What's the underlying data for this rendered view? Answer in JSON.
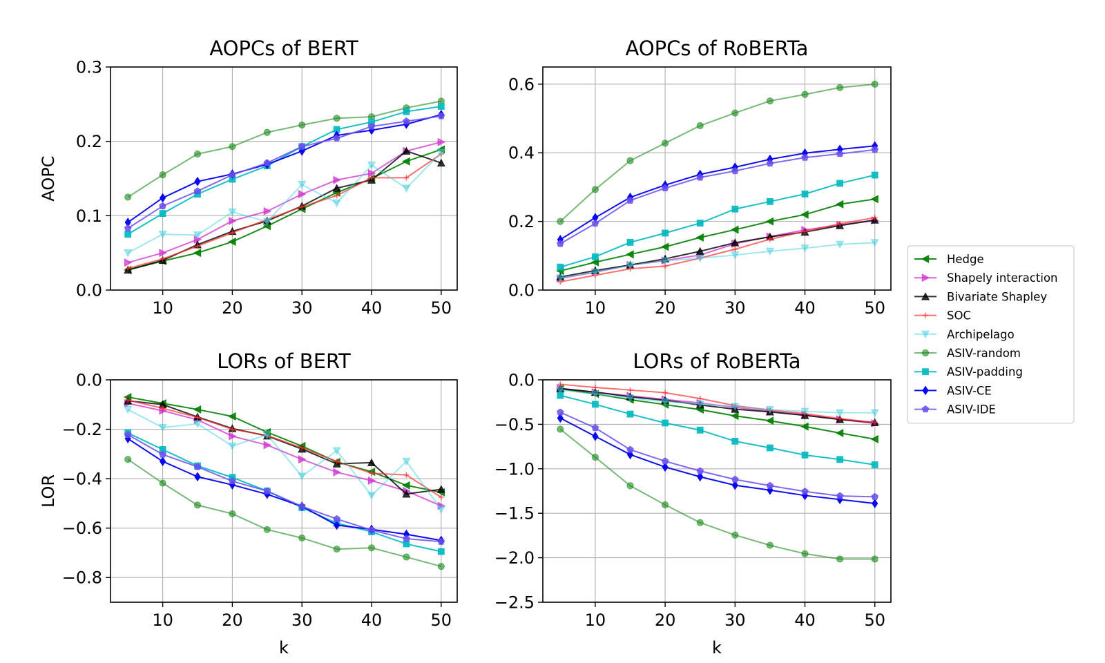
{
  "series_style": [
    {
      "name": "Hedge",
      "color": "#008000",
      "alpha": 0.9,
      "marker": "triangle-left"
    },
    {
      "name": "Shapely interaction",
      "color": "#d030d0",
      "alpha": 0.75,
      "marker": "triangle-right"
    },
    {
      "name": "Bivariate Shapley",
      "color": "#000000",
      "alpha": 0.8,
      "marker": "triangle-up"
    },
    {
      "name": "SOC",
      "color": "#ff3030",
      "alpha": 0.7,
      "marker": "plus"
    },
    {
      "name": "Archipelago",
      "color": "#40d0e0",
      "alpha": 0.5,
      "marker": "triangle-down"
    },
    {
      "name": "ASIV-random",
      "color": "#1a8a1a",
      "alpha": 0.6,
      "marker": "circle"
    },
    {
      "name": "ASIV-padding",
      "color": "#00b8c0",
      "alpha": 0.9,
      "marker": "square"
    },
    {
      "name": "ASIV-CE",
      "color": "#0000ee",
      "alpha": 0.95,
      "marker": "diamond"
    },
    {
      "name": "ASIV-IDE",
      "color": "#6a4ff0",
      "alpha": 0.85,
      "marker": "pentagon"
    }
  ],
  "chart_data": [
    {
      "type": "line",
      "title": "AOPCs of BERT",
      "xlabel": "",
      "ylabel": "AOPC",
      "xlim": [
        2.5,
        52.3
      ],
      "ylim": [
        0.0,
        0.3
      ],
      "xticks": [
        10,
        20,
        30,
        40,
        50
      ],
      "xtick_labels": [
        "10",
        "20",
        "30",
        "40",
        "50"
      ],
      "yticks": [
        0.0,
        0.1,
        0.2,
        0.3
      ],
      "ytick_labels": [
        "0.0",
        "0.1",
        "0.2",
        "0.3"
      ],
      "grid": true,
      "x": [
        5,
        10,
        15,
        20,
        25,
        30,
        35,
        40,
        45,
        50
      ],
      "series": [
        {
          "name": "Hedge",
          "values": [
            0.027,
            0.039,
            0.05,
            0.065,
            0.086,
            0.109,
            0.131,
            0.15,
            0.173,
            0.189
          ]
        },
        {
          "name": "Shapely interaction",
          "values": [
            0.037,
            0.05,
            0.068,
            0.093,
            0.106,
            0.129,
            0.148,
            0.157,
            0.187,
            0.199
          ]
        },
        {
          "name": "Bivariate Shapley",
          "values": [
            0.027,
            0.04,
            0.061,
            0.079,
            0.093,
            0.113,
            0.137,
            0.148,
            0.187,
            0.171
          ]
        },
        {
          "name": "SOC",
          "values": [
            0.029,
            0.042,
            0.059,
            0.077,
            0.095,
            0.112,
            0.127,
            0.151,
            0.151,
            0.183
          ]
        },
        {
          "name": "Archipelago",
          "values": [
            0.05,
            0.075,
            0.074,
            0.105,
            0.092,
            0.142,
            0.117,
            0.168,
            0.137,
            0.185
          ]
        },
        {
          "name": "ASIV-random",
          "values": [
            0.125,
            0.155,
            0.183,
            0.193,
            0.212,
            0.222,
            0.231,
            0.233,
            0.245,
            0.254
          ]
        },
        {
          "name": "ASIV-padding",
          "values": [
            0.075,
            0.103,
            0.129,
            0.149,
            0.167,
            0.193,
            0.216,
            0.226,
            0.24,
            0.247
          ]
        },
        {
          "name": "ASIV-CE",
          "values": [
            0.091,
            0.124,
            0.146,
            0.156,
            0.169,
            0.187,
            0.208,
            0.215,
            0.223,
            0.236
          ]
        },
        {
          "name": "ASIV-IDE",
          "values": [
            0.083,
            0.113,
            0.133,
            0.155,
            0.171,
            0.193,
            0.204,
            0.22,
            0.227,
            0.234
          ]
        }
      ]
    },
    {
      "type": "line",
      "title": "AOPCs of RoBERTa",
      "xlabel": "",
      "ylabel": "",
      "xlim": [
        2.5,
        52.3
      ],
      "ylim": [
        0.0,
        0.65
      ],
      "xticks": [
        10,
        20,
        30,
        40,
        50
      ],
      "xtick_labels": [
        "10",
        "20",
        "30",
        "40",
        "50"
      ],
      "yticks": [
        0.0,
        0.2,
        0.4,
        0.6
      ],
      "ytick_labels": [
        "0.0",
        "0.2",
        "0.4",
        "0.6"
      ],
      "grid": true,
      "x": [
        5,
        10,
        15,
        20,
        25,
        30,
        35,
        40,
        45,
        50
      ],
      "series": [
        {
          "name": "Hedge",
          "values": [
            0.056,
            0.081,
            0.104,
            0.126,
            0.153,
            0.176,
            0.2,
            0.22,
            0.25,
            0.265
          ]
        },
        {
          "name": "Shapely interaction",
          "values": [
            0.034,
            0.052,
            0.073,
            0.086,
            0.102,
            0.135,
            0.156,
            0.175,
            0.19,
            0.203
          ]
        },
        {
          "name": "Bivariate Shapley",
          "values": [
            0.038,
            0.057,
            0.073,
            0.091,
            0.113,
            0.138,
            0.155,
            0.169,
            0.188,
            0.204
          ]
        },
        {
          "name": "SOC",
          "values": [
            0.024,
            0.043,
            0.062,
            0.07,
            0.093,
            0.119,
            0.148,
            0.171,
            0.193,
            0.211
          ]
        },
        {
          "name": "Archipelago",
          "values": [
            0.035,
            0.052,
            0.072,
            0.085,
            0.093,
            0.102,
            0.113,
            0.122,
            0.133,
            0.138
          ]
        },
        {
          "name": "ASIV-random",
          "values": [
            0.2,
            0.293,
            0.377,
            0.428,
            0.479,
            0.516,
            0.551,
            0.57,
            0.59,
            0.6
          ]
        },
        {
          "name": "ASIV-padding",
          "values": [
            0.067,
            0.097,
            0.139,
            0.166,
            0.195,
            0.236,
            0.258,
            0.28,
            0.311,
            0.335
          ]
        },
        {
          "name": "ASIV-CE",
          "values": [
            0.147,
            0.211,
            0.27,
            0.306,
            0.337,
            0.358,
            0.381,
            0.399,
            0.41,
            0.42
          ]
        },
        {
          "name": "ASIV-IDE",
          "values": [
            0.135,
            0.194,
            0.261,
            0.297,
            0.328,
            0.347,
            0.369,
            0.386,
            0.397,
            0.409
          ]
        }
      ]
    },
    {
      "type": "line",
      "title": "LORs of BERT",
      "xlabel": "k",
      "ylabel": "LOR",
      "xlim": [
        2.5,
        52.3
      ],
      "ylim": [
        -0.9,
        0.0
      ],
      "xticks": [
        10,
        20,
        30,
        40,
        50
      ],
      "xtick_labels": [
        "10",
        "20",
        "30",
        "40",
        "50"
      ],
      "yticks": [
        0.0,
        -0.2,
        -0.4,
        -0.6,
        -0.8
      ],
      "ytick_labels": [
        "0.0",
        "−0.2",
        "−0.4",
        "−0.6",
        "−0.8"
      ],
      "grid": true,
      "x": [
        5,
        10,
        15,
        20,
        25,
        30,
        35,
        40,
        45,
        50
      ],
      "series": [
        {
          "name": "Hedge",
          "values": [
            -0.07,
            -0.095,
            -0.12,
            -0.148,
            -0.212,
            -0.268,
            -0.332,
            -0.372,
            -0.427,
            -0.455
          ]
        },
        {
          "name": "Shapely interaction",
          "values": [
            -0.095,
            -0.125,
            -0.162,
            -0.228,
            -0.264,
            -0.322,
            -0.374,
            -0.408,
            -0.45,
            -0.51
          ]
        },
        {
          "name": "Bivariate Shapley",
          "values": [
            -0.085,
            -0.1,
            -0.15,
            -0.197,
            -0.227,
            -0.28,
            -0.34,
            -0.335,
            -0.462,
            -0.443
          ]
        },
        {
          "name": "SOC",
          "values": [
            -0.082,
            -0.115,
            -0.152,
            -0.2,
            -0.225,
            -0.275,
            -0.33,
            -0.378,
            -0.385,
            -0.475
          ]
        },
        {
          "name": "Archipelago",
          "values": [
            -0.12,
            -0.193,
            -0.178,
            -0.268,
            -0.222,
            -0.39,
            -0.287,
            -0.468,
            -0.33,
            -0.525
          ]
        },
        {
          "name": "ASIV-random",
          "values": [
            -0.322,
            -0.418,
            -0.507,
            -0.542,
            -0.606,
            -0.64,
            -0.685,
            -0.68,
            -0.717,
            -0.755
          ]
        },
        {
          "name": "ASIV-padding",
          "values": [
            -0.215,
            -0.282,
            -0.348,
            -0.395,
            -0.45,
            -0.517,
            -0.58,
            -0.615,
            -0.664,
            -0.695
          ]
        },
        {
          "name": "ASIV-CE",
          "values": [
            -0.238,
            -0.33,
            -0.392,
            -0.425,
            -0.463,
            -0.512,
            -0.588,
            -0.605,
            -0.625,
            -0.65
          ]
        },
        {
          "name": "ASIV-IDE",
          "values": [
            -0.222,
            -0.302,
            -0.352,
            -0.41,
            -0.45,
            -0.512,
            -0.563,
            -0.608,
            -0.643,
            -0.655
          ]
        }
      ]
    },
    {
      "type": "line",
      "title": "LORs of RoBERTa",
      "xlabel": "k",
      "ylabel": "",
      "xlim": [
        2.5,
        52.3
      ],
      "ylim": [
        -2.5,
        0.0
      ],
      "xticks": [
        10,
        20,
        30,
        40,
        50
      ],
      "xtick_labels": [
        "10",
        "20",
        "30",
        "40",
        "50"
      ],
      "yticks": [
        0.0,
        -0.5,
        -1.0,
        -1.5,
        -2.0,
        -2.5
      ],
      "ytick_labels": [
        "0.0",
        "−0.5",
        "−1.0",
        "−1.5",
        "−2.0",
        "−2.5"
      ],
      "grid": true,
      "x": [
        5,
        10,
        15,
        20,
        25,
        30,
        35,
        40,
        45,
        50
      ],
      "series": [
        {
          "name": "Hedge",
          "values": [
            -0.1,
            -0.158,
            -0.223,
            -0.278,
            -0.335,
            -0.405,
            -0.46,
            -0.525,
            -0.598,
            -0.667
          ]
        },
        {
          "name": "Shapely interaction",
          "values": [
            -0.095,
            -0.14,
            -0.18,
            -0.22,
            -0.26,
            -0.31,
            -0.355,
            -0.392,
            -0.445,
            -0.49
          ]
        },
        {
          "name": "Bivariate Shapley",
          "values": [
            -0.098,
            -0.138,
            -0.19,
            -0.23,
            -0.282,
            -0.33,
            -0.36,
            -0.4,
            -0.445,
            -0.48
          ]
        },
        {
          "name": "SOC",
          "values": [
            -0.05,
            -0.085,
            -0.115,
            -0.145,
            -0.21,
            -0.29,
            -0.34,
            -0.38,
            -0.435,
            -0.48
          ]
        },
        {
          "name": "Archipelago",
          "values": [
            -0.115,
            -0.16,
            -0.205,
            -0.245,
            -0.27,
            -0.3,
            -0.335,
            -0.355,
            -0.37,
            -0.37
          ]
        },
        {
          "name": "ASIV-random",
          "values": [
            -0.555,
            -0.87,
            -1.19,
            -1.405,
            -1.605,
            -1.745,
            -1.86,
            -1.955,
            -2.015,
            -2.015
          ]
        },
        {
          "name": "ASIV-padding",
          "values": [
            -0.175,
            -0.275,
            -0.385,
            -0.485,
            -0.565,
            -0.69,
            -0.765,
            -0.845,
            -0.895,
            -0.955
          ]
        },
        {
          "name": "ASIV-CE",
          "values": [
            -0.43,
            -0.635,
            -0.84,
            -0.98,
            -1.09,
            -1.185,
            -1.24,
            -1.3,
            -1.345,
            -1.39
          ]
        },
        {
          "name": "ASIV-IDE",
          "values": [
            -0.365,
            -0.54,
            -0.785,
            -0.915,
            -1.025,
            -1.12,
            -1.19,
            -1.255,
            -1.305,
            -1.315
          ]
        }
      ]
    }
  ]
}
